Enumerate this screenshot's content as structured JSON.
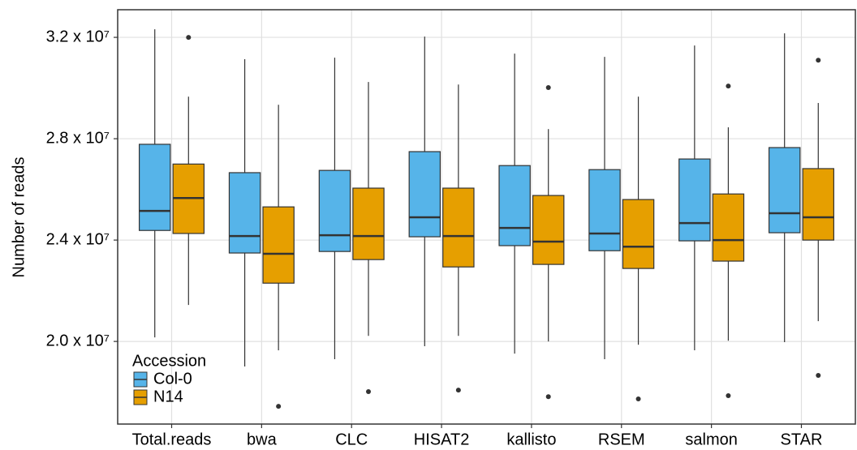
{
  "chart_data": {
    "type": "boxplot",
    "y_label": "Number of reads",
    "categories": [
      "Total.reads",
      "bwa",
      "CLC",
      "HISAT2",
      "kallisto",
      "RSEM",
      "salmon",
      "STAR"
    ],
    "ylim": [
      16740000,
      33090000
    ],
    "yticks": [
      {
        "value": 20000000,
        "label": "2.0 x 10⁷"
      },
      {
        "value": 24000000,
        "label": "2.4 x 10⁷"
      },
      {
        "value": 28000000,
        "label": "2.8 x 10⁷"
      },
      {
        "value": 32000000,
        "label": "3.2 x 10⁷"
      }
    ],
    "grid": true,
    "legend": {
      "title": "Accession",
      "position": "bottom-left"
    },
    "series": [
      {
        "name": "Col-0",
        "color": "#56B4E9",
        "min": [
          20160000,
          19010000,
          19300000,
          19810000,
          19520000,
          19300000,
          19650000,
          19970000
        ],
        "q1": [
          24380000,
          23490000,
          23550000,
          24130000,
          23780000,
          23580000,
          23970000,
          24290000
        ],
        "median": [
          25150000,
          24160000,
          24190000,
          24900000,
          24480000,
          24260000,
          24670000,
          25060000
        ],
        "q3": [
          27780000,
          26660000,
          26750000,
          27490000,
          26940000,
          26780000,
          27200000,
          27650000
        ],
        "max": [
          32320000,
          31140000,
          31200000,
          32030000,
          31360000,
          31230000,
          31680000,
          32160000
        ],
        "outliers": [
          [],
          [],
          [],
          [],
          [],
          [],
          [],
          []
        ]
      },
      {
        "name": "N14",
        "color": "#E69F00",
        "min": [
          21440000,
          19650000,
          20220000,
          20220000,
          20000000,
          19870000,
          20030000,
          20800000
        ],
        "q1": [
          24260000,
          22300000,
          23230000,
          22940000,
          23040000,
          22880000,
          23170000,
          24000000
        ],
        "median": [
          25660000,
          23460000,
          24160000,
          24160000,
          23940000,
          23740000,
          24000000,
          24900000
        ],
        "q3": [
          27000000,
          25310000,
          26050000,
          26050000,
          25760000,
          25600000,
          25820000,
          26820000
        ],
        "max": [
          29660000,
          29340000,
          30240000,
          30140000,
          28380000,
          29660000,
          28450000,
          29410000
        ],
        "outliers": [
          [
            32000000
          ],
          [
            17440000
          ],
          [
            18020000
          ],
          [
            18080000
          ],
          [
            30020000,
            17820000
          ],
          [
            17730000
          ],
          [
            30080000,
            17860000
          ],
          [
            31100000,
            18660000
          ]
        ]
      }
    ]
  }
}
